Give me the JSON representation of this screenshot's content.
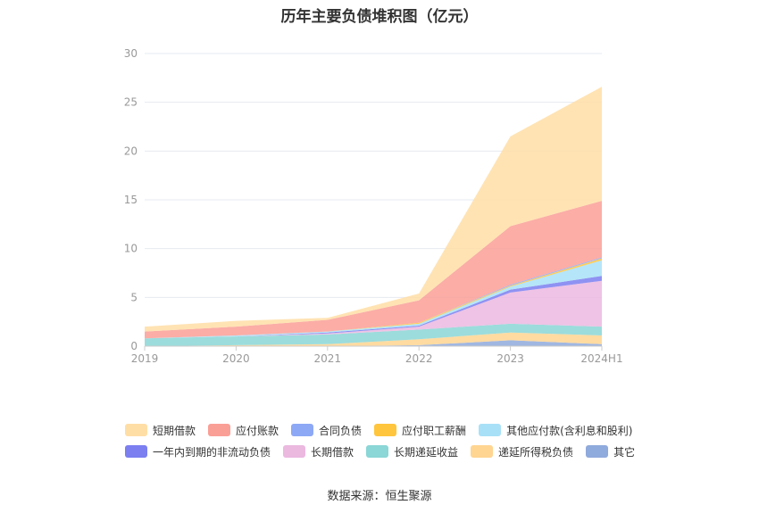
{
  "title": "历年主要负债堆积图（亿元）",
  "source": "数据来源：恒生聚源",
  "chart_data": {
    "type": "area",
    "stacked": true,
    "categories": [
      "2019",
      "2020",
      "2021",
      "2022",
      "2023",
      "2024H1"
    ],
    "ylim": [
      0,
      30
    ],
    "yticks": [
      0,
      5,
      10,
      15,
      20,
      25,
      30
    ],
    "grid": true,
    "legend_position": "bottom",
    "series": [
      {
        "name": "其它",
        "color": "#8faadc",
        "values": [
          0.0,
          0.0,
          0.0,
          0.1,
          0.6,
          0.2
        ]
      },
      {
        "name": "递延所得税负债",
        "color": "#ffd591",
        "values": [
          0.0,
          0.1,
          0.2,
          0.6,
          0.8,
          0.9
        ]
      },
      {
        "name": "长期递延收益",
        "color": "#8bd6d6",
        "values": [
          0.8,
          0.9,
          1.0,
          1.0,
          0.9,
          0.9
        ]
      },
      {
        "name": "长期借款",
        "color": "#ebb8e0",
        "values": [
          0.0,
          0.0,
          0.1,
          0.3,
          3.2,
          4.7
        ]
      },
      {
        "name": "一年内到期的非流动负债",
        "color": "#7b7ff0",
        "values": [
          0.0,
          0.0,
          0.1,
          0.1,
          0.3,
          0.5
        ]
      },
      {
        "name": "其他应付款(含利息和股利)",
        "color": "#a8e0f7",
        "values": [
          0.0,
          0.1,
          0.1,
          0.2,
          0.3,
          1.6
        ]
      },
      {
        "name": "应付职工薪酬",
        "color": "#ffc53d",
        "values": [
          0.0,
          0.0,
          0.0,
          0.1,
          0.1,
          0.2
        ]
      },
      {
        "name": "合同负债",
        "color": "#8da8f5",
        "values": [
          0.0,
          0.0,
          0.0,
          0.0,
          0.1,
          0.1
        ]
      },
      {
        "name": "应付账款",
        "color": "#fa9f96",
        "values": [
          0.7,
          0.9,
          1.2,
          2.3,
          6.0,
          5.8
        ]
      },
      {
        "name": "短期借款",
        "color": "#ffdea6",
        "values": [
          0.5,
          0.6,
          0.2,
          0.7,
          9.2,
          11.7
        ]
      }
    ],
    "legend_order": [
      "短期借款",
      "应付账款",
      "合同负债",
      "应付职工薪酬",
      "其他应付款(含利息和股利)",
      "一年内到期的非流动负债",
      "长期借款",
      "长期递延收益",
      "递延所得税负债",
      "其它"
    ]
  }
}
